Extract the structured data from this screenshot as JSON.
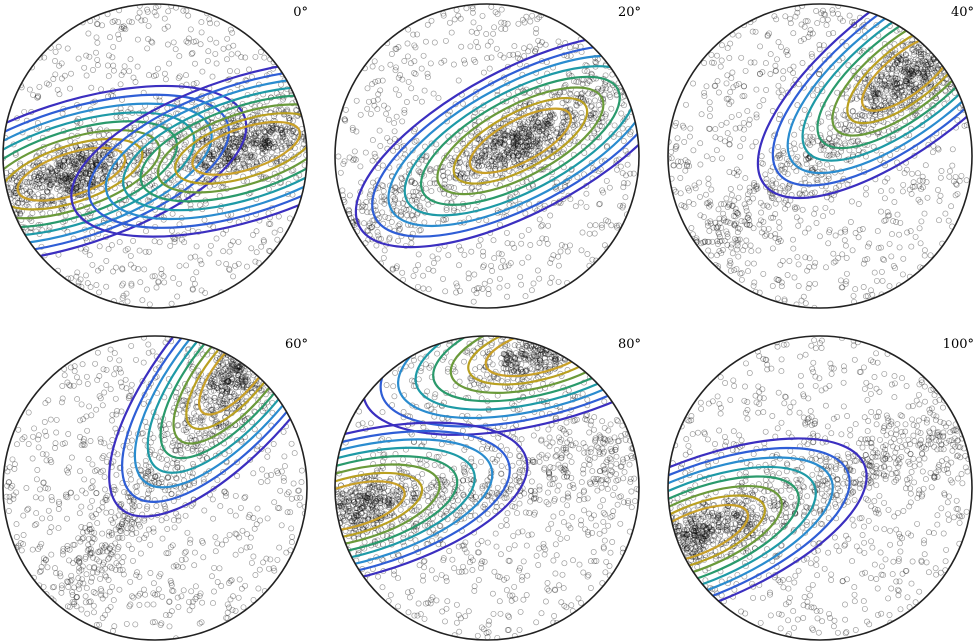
{
  "chart_data": {
    "type": "scatter",
    "description_kind": "pole-figure-panels",
    "grid": false,
    "legend": "none",
    "contour_colors": [
      "#3b2fc0",
      "#2f5ed6",
      "#2a8ccf",
      "#1e9aa6",
      "#2a9a6c",
      "#6a9a3a",
      "#b9a020",
      "#c9a028"
    ],
    "marker_color": "#000000",
    "panels": [
      {
        "label": "0°",
        "rotation_deg": 0,
        "maxima": [
          {
            "u": -0.55,
            "v": 0.12
          },
          {
            "u": 0.6,
            "v": -0.05
          }
        ],
        "girdle_angle_deg": 18
      },
      {
        "label": "20°",
        "rotation_deg": 20,
        "maxima": [
          {
            "u": 0.22,
            "v": -0.1
          }
        ],
        "girdle_angle_deg": 28
      },
      {
        "label": "40°",
        "rotation_deg": 40,
        "maxima": [
          {
            "u": 0.58,
            "v": -0.55
          }
        ],
        "girdle_angle_deg": 38
      },
      {
        "label": "60°",
        "rotation_deg": 60,
        "maxima": [
          {
            "u": 0.55,
            "v": -0.78
          }
        ],
        "girdle_angle_deg": 50
      },
      {
        "label": "80°",
        "rotation_deg": 80,
        "maxima": [
          {
            "u": 0.35,
            "v": -0.9
          },
          {
            "u": -0.9,
            "v": 0.12
          }
        ],
        "girdle_angle_deg": 15
      },
      {
        "label": "100°",
        "rotation_deg": 100,
        "maxima": [
          {
            "u": -0.82,
            "v": 0.3
          }
        ],
        "girdle_angle_deg": 22
      }
    ]
  }
}
